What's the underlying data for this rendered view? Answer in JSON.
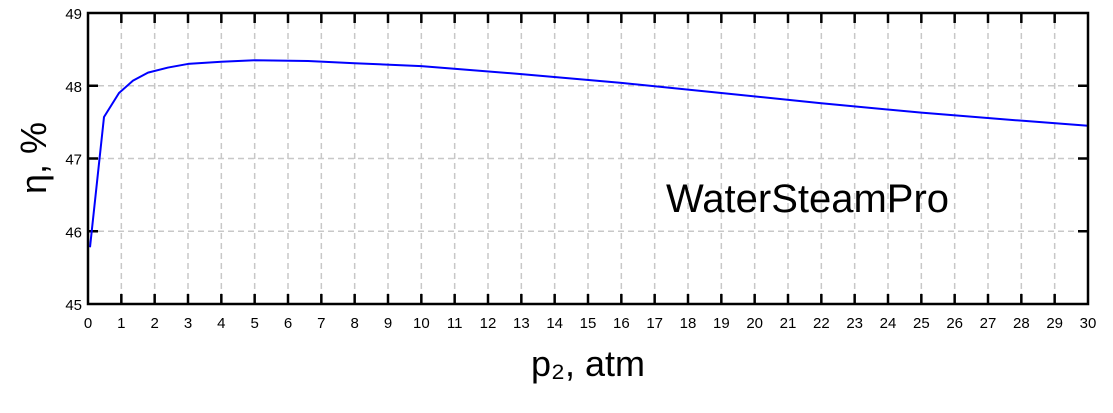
{
  "chart_data": {
    "type": "line",
    "xlabel": "p₂, atm",
    "ylabel": "η, %",
    "annotation": "WaterSteamPro",
    "xlim": [
      0,
      30
    ],
    "ylim": [
      45,
      49
    ],
    "xticks": [
      0,
      1,
      2,
      3,
      4,
      5,
      6,
      7,
      8,
      9,
      10,
      11,
      12,
      13,
      14,
      15,
      16,
      17,
      18,
      19,
      20,
      21,
      22,
      23,
      24,
      25,
      26,
      27,
      28,
      29,
      30
    ],
    "yticks": [
      45,
      46,
      47,
      48,
      49
    ],
    "grid": true,
    "line_color": "#0000ff",
    "series": [
      {
        "x": [
          0.06,
          0.48,
          0.93,
          1.35,
          1.8,
          2.4,
          3,
          4,
          5,
          6.6,
          8,
          10,
          13,
          16,
          19,
          22,
          25,
          28,
          30
        ],
        "y": [
          45.78,
          47.57,
          47.9,
          48.07,
          48.18,
          48.25,
          48.3,
          48.33,
          48.35,
          48.34,
          48.31,
          48.27,
          48.16,
          48.04,
          47.9,
          47.76,
          47.63,
          47.52,
          47.45
        ]
      }
    ]
  }
}
